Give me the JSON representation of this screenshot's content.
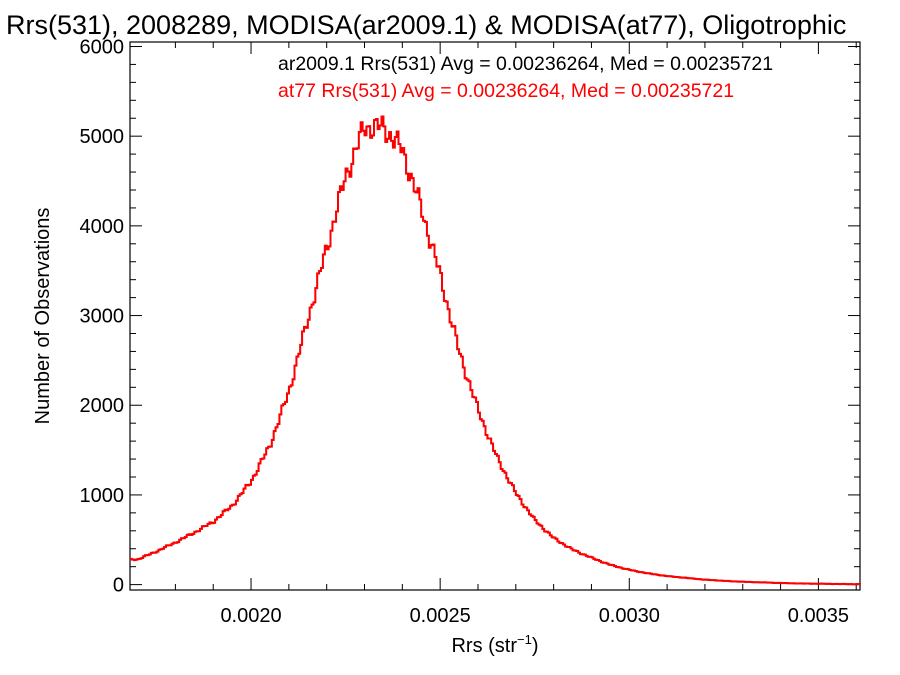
{
  "chart_data": {
    "type": "line",
    "title": "Rrs(531), 2008289, MODISA(ar2009.1) & MODISA(at77), Oligotrophic",
    "xlabel_base": "Rrs (str",
    "xlabel_sup": "−1",
    "xlabel_close": ")",
    "ylabel": "Number of Observations",
    "xlim": [
      0.00168,
      0.00361
    ],
    "ylim": [
      -60,
      6050
    ],
    "xticks": [
      0.002,
      0.0025,
      0.003,
      0.0035
    ],
    "xtick_labels": [
      "0.0020",
      "0.0025",
      "0.0030",
      "0.0035"
    ],
    "yticks": [
      0,
      1000,
      2000,
      3000,
      4000,
      5000,
      6000
    ],
    "ytick_labels": [
      "0",
      "1000",
      "2000",
      "3000",
      "4000",
      "5000",
      "6000"
    ],
    "grid": false,
    "legend": [
      {
        "text": "ar2009.1 Rrs(531) Avg = 0.00236264, Med = 0.00235721",
        "color": "#000000"
      },
      {
        "text": "at77 Rrs(531) Avg = 0.00236264, Med = 0.00235721",
        "color": "#ff0000"
      }
    ],
    "series": [
      {
        "name": "ar2009.1",
        "color": "#000000",
        "x": [
          0.0017,
          0.00175,
          0.0018,
          0.00185,
          0.0019,
          0.00195,
          0.002,
          0.00205,
          0.0021,
          0.00215,
          0.0022,
          0.00225,
          0.0023,
          0.00235,
          0.0024,
          0.00245,
          0.0025,
          0.00255,
          0.0026,
          0.00265,
          0.0027,
          0.00275,
          0.0028,
          0.00285,
          0.0029,
          0.00295,
          0.003,
          0.00305,
          0.0031,
          0.00315,
          0.0032,
          0.00325,
          0.0033,
          0.00335,
          0.0034,
          0.00345,
          0.0035,
          0.00355,
          0.0036
        ],
        "y": [
          280,
          370,
          470,
          580,
          700,
          880,
          1150,
          1550,
          2150,
          2950,
          3750,
          4550,
          5100,
          5100,
          4850,
          4200,
          3450,
          2600,
          1950,
          1420,
          1020,
          720,
          520,
          390,
          300,
          220,
          165,
          125,
          95,
          75,
          55,
          42,
          32,
          25,
          18,
          13,
          10,
          7,
          5
        ]
      },
      {
        "name": "at77",
        "color": "#ff0000",
        "x": [
          0.0017,
          0.00175,
          0.0018,
          0.00185,
          0.0019,
          0.00195,
          0.002,
          0.00205,
          0.0021,
          0.00215,
          0.0022,
          0.00225,
          0.0023,
          0.00235,
          0.0024,
          0.00245,
          0.0025,
          0.00255,
          0.0026,
          0.00265,
          0.0027,
          0.00275,
          0.0028,
          0.00285,
          0.0029,
          0.00295,
          0.003,
          0.00305,
          0.0031,
          0.00315,
          0.0032,
          0.00325,
          0.0033,
          0.00335,
          0.0034,
          0.00345,
          0.0035,
          0.00355,
          0.0036
        ],
        "y": [
          280,
          370,
          470,
          580,
          700,
          880,
          1150,
          1550,
          2150,
          2950,
          3750,
          4550,
          5100,
          5100,
          4850,
          4200,
          3450,
          2600,
          1950,
          1420,
          1020,
          720,
          520,
          390,
          300,
          220,
          165,
          125,
          95,
          75,
          55,
          42,
          32,
          25,
          18,
          13,
          10,
          7,
          5
        ]
      }
    ]
  }
}
